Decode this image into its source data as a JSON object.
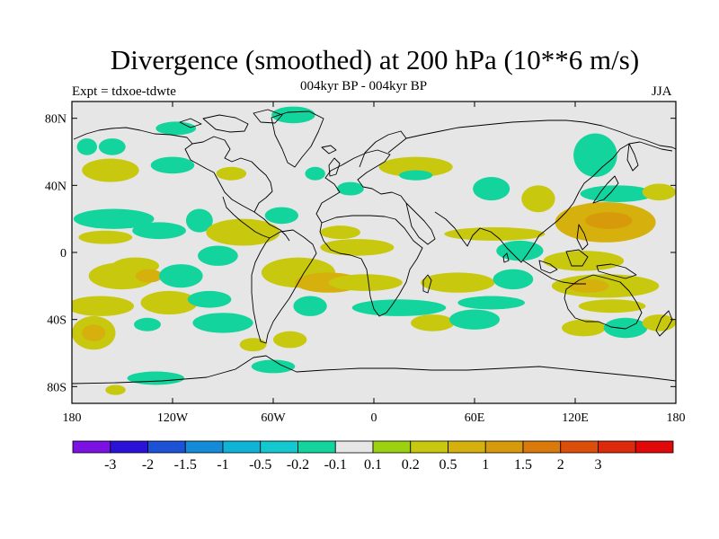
{
  "title": "Divergence (smoothed) at 200 hPa (10**6 m/s)",
  "left_subtitle": "Expt = tdxoe-tdwte",
  "center_subtitle": "004kyr BP - 004kyr BP",
  "right_subtitle": "JJA",
  "map": {
    "projection": "cylindrical-equidistant",
    "lon_range": [
      180,
      540
    ],
    "lat_range": [
      -90,
      90
    ],
    "background_color": "#e6e6e6",
    "coastline_color": "#000000",
    "lat_ticks": [
      {
        "value": 80,
        "label": "80N"
      },
      {
        "value": 40,
        "label": "40N"
      },
      {
        "value": 0,
        "label": "0"
      },
      {
        "value": -40,
        "label": "40S"
      },
      {
        "value": -80,
        "label": "80S"
      }
    ],
    "lon_ticks": [
      {
        "value": 180,
        "label": "180"
      },
      {
        "value": 240,
        "label": "120W"
      },
      {
        "value": 300,
        "label": "60W"
      },
      {
        "value": 360,
        "label": "0"
      },
      {
        "value": 420,
        "label": "60E"
      },
      {
        "value": 480,
        "label": "120E"
      },
      {
        "value": 540,
        "label": "180"
      }
    ]
  },
  "colorbar": {
    "colors": [
      "#7b12e3",
      "#2c12d6",
      "#1d52d6",
      "#138bd6",
      "#0fb3d6",
      "#14c8d0",
      "#13d49c",
      "#e6e6e6",
      "#9cd10f",
      "#c8c80e",
      "#d6b00c",
      "#d69a0b",
      "#d97a0a",
      "#dc4f0a",
      "#dc2a0a",
      "#e00808"
    ],
    "labels": [
      "-3",
      "-2",
      "-1.5",
      "-1",
      "-0.5",
      "-0.2",
      "-0.1",
      "0.1",
      "0.2",
      "0.5",
      "1",
      "1.5",
      "2",
      "3"
    ]
  },
  "field_blobs": [
    {
      "lon": 189,
      "lat": 63,
      "rx": 6,
      "ry": 5,
      "level": "cyan"
    },
    {
      "lon": 204,
      "lat": 63,
      "rx": 8,
      "ry": 5,
      "level": "cyan"
    },
    {
      "lon": 203,
      "lat": 49,
      "rx": 17,
      "ry": 7,
      "level": "yellow-green"
    },
    {
      "lon": 242,
      "lat": 74,
      "rx": 12,
      "ry": 4,
      "level": "cyan"
    },
    {
      "lon": 240,
      "lat": 52,
      "rx": 13,
      "ry": 5,
      "level": "cyan"
    },
    {
      "lon": 275,
      "lat": 47,
      "rx": 9,
      "ry": 4,
      "level": "yellow-green"
    },
    {
      "lon": 312,
      "lat": 82,
      "rx": 13,
      "ry": 5,
      "level": "cyan"
    },
    {
      "lon": 325,
      "lat": 47,
      "rx": 6,
      "ry": 4,
      "level": "cyan"
    },
    {
      "lon": 346,
      "lat": 38,
      "rx": 8,
      "ry": 4,
      "level": "cyan"
    },
    {
      "lon": 385,
      "lat": 51,
      "rx": 22,
      "ry": 6,
      "level": "yellow-green"
    },
    {
      "lon": 385,
      "lat": 46,
      "rx": 10,
      "ry": 3,
      "level": "cyan"
    },
    {
      "lon": 430,
      "lat": 38,
      "rx": 11,
      "ry": 7,
      "level": "cyan"
    },
    {
      "lon": 458,
      "lat": 32,
      "rx": 10,
      "ry": 8,
      "level": "yellow-green"
    },
    {
      "lon": 492,
      "lat": 58,
      "rx": 13,
      "ry": 13,
      "level": "cyan"
    },
    {
      "lon": 505,
      "lat": 35,
      "rx": 22,
      "ry": 5,
      "level": "cyan"
    },
    {
      "lon": 530,
      "lat": 36,
      "rx": 10,
      "ry": 5,
      "level": "yellow-green"
    },
    {
      "lon": 498,
      "lat": 18,
      "rx": 30,
      "ry": 12,
      "level": "gold"
    },
    {
      "lon": 500,
      "lat": 19,
      "rx": 14,
      "ry": 5,
      "level": "orange"
    },
    {
      "lon": 205,
      "lat": 20,
      "rx": 24,
      "ry": 6,
      "level": "cyan"
    },
    {
      "lon": 200,
      "lat": 9,
      "rx": 16,
      "ry": 4,
      "level": "yellow-green"
    },
    {
      "lon": 232,
      "lat": 13,
      "rx": 16,
      "ry": 5,
      "level": "cyan"
    },
    {
      "lon": 218,
      "lat": -8,
      "rx": 14,
      "ry": 5,
      "level": "yellow-green"
    },
    {
      "lon": 256,
      "lat": 19,
      "rx": 8,
      "ry": 7,
      "level": "cyan"
    },
    {
      "lon": 282,
      "lat": 12,
      "rx": 22,
      "ry": 8,
      "level": "yellow-green"
    },
    {
      "lon": 305,
      "lat": 22,
      "rx": 10,
      "ry": 5,
      "level": "cyan"
    },
    {
      "lon": 340,
      "lat": 12,
      "rx": 12,
      "ry": 4,
      "level": "yellow-green"
    },
    {
      "lon": 350,
      "lat": 3,
      "rx": 22,
      "ry": 5,
      "level": "yellow-green"
    },
    {
      "lon": 432,
      "lat": 11,
      "rx": 30,
      "ry": 4,
      "level": "yellow-green"
    },
    {
      "lon": 447,
      "lat": 1,
      "rx": 14,
      "ry": 6,
      "level": "cyan"
    },
    {
      "lon": 485,
      "lat": -5,
      "rx": 24,
      "ry": 6,
      "level": "yellow-green"
    },
    {
      "lon": 210,
      "lat": -14,
      "rx": 20,
      "ry": 8,
      "level": "yellow-green"
    },
    {
      "lon": 226,
      "lat": -14,
      "rx": 8,
      "ry": 4,
      "level": "gold"
    },
    {
      "lon": 245,
      "lat": -14,
      "rx": 13,
      "ry": 7,
      "level": "cyan"
    },
    {
      "lon": 267,
      "lat": -2,
      "rx": 12,
      "ry": 6,
      "level": "cyan"
    },
    {
      "lon": 315,
      "lat": -12,
      "rx": 22,
      "ry": 9,
      "level": "yellow-green"
    },
    {
      "lon": 333,
      "lat": -18,
      "rx": 20,
      "ry": 6,
      "level": "gold"
    },
    {
      "lon": 355,
      "lat": -18,
      "rx": 22,
      "ry": 5,
      "level": "yellow-green"
    },
    {
      "lon": 410,
      "lat": -18,
      "rx": 22,
      "ry": 6,
      "level": "yellow-green"
    },
    {
      "lon": 443,
      "lat": -16,
      "rx": 12,
      "ry": 6,
      "level": "cyan"
    },
    {
      "lon": 498,
      "lat": -20,
      "rx": 32,
      "ry": 7,
      "level": "yellow-green"
    },
    {
      "lon": 488,
      "lat": -20,
      "rx": 12,
      "ry": 4,
      "level": "gold"
    },
    {
      "lon": 197,
      "lat": -32,
      "rx": 20,
      "ry": 6,
      "level": "yellow-green"
    },
    {
      "lon": 238,
      "lat": -30,
      "rx": 17,
      "ry": 7,
      "level": "yellow-green"
    },
    {
      "lon": 262,
      "lat": -28,
      "rx": 13,
      "ry": 5,
      "level": "cyan"
    },
    {
      "lon": 322,
      "lat": -32,
      "rx": 10,
      "ry": 6,
      "level": "cyan"
    },
    {
      "lon": 375,
      "lat": -33,
      "rx": 28,
      "ry": 5,
      "level": "cyan"
    },
    {
      "lon": 430,
      "lat": -30,
      "rx": 20,
      "ry": 4,
      "level": "cyan"
    },
    {
      "lon": 502,
      "lat": -32,
      "rx": 20,
      "ry": 4,
      "level": "yellow-green"
    },
    {
      "lon": 193,
      "lat": -48,
      "rx": 13,
      "ry": 10,
      "level": "yellow-green"
    },
    {
      "lon": 193,
      "lat": -48,
      "rx": 7,
      "ry": 5,
      "level": "gold"
    },
    {
      "lon": 225,
      "lat": -43,
      "rx": 8,
      "ry": 4,
      "level": "cyan"
    },
    {
      "lon": 270,
      "lat": -42,
      "rx": 18,
      "ry": 6,
      "level": "cyan"
    },
    {
      "lon": 288,
      "lat": -55,
      "rx": 8,
      "ry": 4,
      "level": "yellow-green"
    },
    {
      "lon": 310,
      "lat": -52,
      "rx": 10,
      "ry": 5,
      "level": "yellow-green"
    },
    {
      "lon": 395,
      "lat": -42,
      "rx": 13,
      "ry": 5,
      "level": "yellow-green"
    },
    {
      "lon": 420,
      "lat": -40,
      "rx": 15,
      "ry": 6,
      "level": "cyan"
    },
    {
      "lon": 485,
      "lat": -45,
      "rx": 13,
      "ry": 5,
      "level": "yellow-green"
    },
    {
      "lon": 510,
      "lat": -45,
      "rx": 13,
      "ry": 6,
      "level": "cyan"
    },
    {
      "lon": 530,
      "lat": -42,
      "rx": 10,
      "ry": 5,
      "level": "yellow-green"
    },
    {
      "lon": 300,
      "lat": -68,
      "rx": 13,
      "ry": 4,
      "level": "cyan"
    },
    {
      "lon": 230,
      "lat": -75,
      "rx": 17,
      "ry": 4,
      "level": "cyan"
    },
    {
      "lon": 206,
      "lat": -82,
      "rx": 6,
      "ry": 3,
      "level": "yellow-green"
    }
  ]
}
